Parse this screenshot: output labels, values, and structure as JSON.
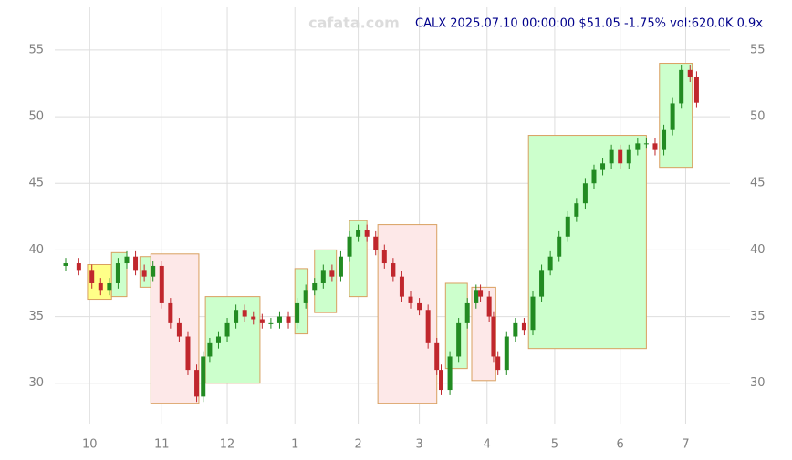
{
  "chart_data": {
    "type": "candlestick",
    "title": "CALX 2025.07.10 00:00:00 $51.05 -1.75% vol:620.0K 0.9x",
    "watermark": "cafata.com",
    "xlim": [
      0,
      293
    ],
    "ylim": [
      28,
      58
    ],
    "xticks": [
      {
        "value": 11,
        "label": "10"
      },
      {
        "value": 44,
        "label": "11"
      },
      {
        "value": 74,
        "label": "12"
      },
      {
        "value": 105,
        "label": "1"
      },
      {
        "value": 134,
        "label": "2"
      },
      {
        "value": 162,
        "label": "3"
      },
      {
        "value": 193,
        "label": "4"
      },
      {
        "value": 224,
        "label": "5"
      },
      {
        "value": 254,
        "label": "6"
      },
      {
        "value": 284,
        "label": "7"
      }
    ],
    "yticks": [
      30,
      35,
      40,
      45,
      50,
      55
    ],
    "grid": true,
    "up_color": "#228b22",
    "down_color": "#c0272d",
    "x": [
      0,
      6,
      12,
      16,
      20,
      24,
      28,
      32,
      36,
      40,
      44,
      48,
      52,
      56,
      60,
      63,
      66,
      70,
      74,
      78,
      82,
      86,
      90,
      94,
      98,
      102,
      106,
      110,
      114,
      118,
      122,
      126,
      130,
      134,
      138,
      142,
      146,
      150,
      154,
      158,
      162,
      166,
      170,
      172,
      176,
      180,
      184,
      188,
      190,
      194,
      196,
      198,
      202,
      206,
      210,
      214,
      218,
      222,
      226,
      230,
      234,
      238,
      242,
      246,
      250,
      254,
      258,
      262,
      266,
      270,
      274,
      278,
      282,
      286,
      289
    ],
    "open": [
      38.8,
      39,
      38.5,
      37.5,
      37,
      37.5,
      39,
      39.5,
      38.5,
      38,
      38.8,
      36,
      34.5,
      33.5,
      31,
      29,
      32,
      33,
      33.5,
      34.5,
      35.5,
      35,
      34.8,
      34.5,
      34.5,
      35,
      34.5,
      36,
      37,
      37.5,
      38.5,
      38,
      39.5,
      41,
      41.5,
      41,
      40,
      39,
      38,
      36.5,
      36,
      35.5,
      33,
      31,
      29.5,
      32,
      34.5,
      36,
      37,
      36.5,
      35,
      32,
      31,
      33.5,
      34.5,
      34,
      36.5,
      38.5,
      39.5,
      41,
      42.5,
      43.5,
      45,
      46,
      46.5,
      47.5,
      46.5,
      47.5,
      48,
      48,
      47.5,
      49,
      51,
      53.5,
      53
    ],
    "high": [
      39.4,
      39.4,
      38.9,
      37.9,
      37.9,
      39.4,
      39.9,
      39.9,
      38.9,
      39.2,
      39.2,
      36.4,
      34.9,
      33.9,
      31.4,
      32.4,
      33.4,
      33.9,
      34.9,
      35.9,
      35.9,
      35.4,
      35.2,
      34.9,
      35.4,
      35.4,
      36.4,
      37.4,
      37.9,
      38.9,
      38.9,
      39.9,
      41.4,
      41.9,
      41.9,
      41.4,
      40.4,
      39.4,
      38.4,
      36.9,
      36.4,
      35.9,
      33.4,
      31.4,
      32.4,
      34.9,
      36.4,
      37.4,
      37.4,
      36.9,
      35.4,
      32.4,
      33.9,
      34.9,
      34.9,
      36.9,
      38.9,
      39.9,
      41.4,
      42.9,
      43.9,
      45.4,
      46.4,
      46.9,
      47.9,
      47.9,
      47.9,
      48.4,
      48.4,
      48.4,
      49.4,
      51.4,
      53.9,
      53.9,
      53.4
    ],
    "low": [
      38.4,
      38.1,
      37.1,
      36.6,
      36.6,
      37.1,
      38.6,
      38.1,
      37.6,
      37.6,
      35.6,
      34.1,
      33.1,
      30.6,
      28.6,
      28.6,
      31.6,
      32.6,
      33.1,
      34.1,
      34.6,
      34.4,
      34.1,
      34.1,
      34.1,
      34.1,
      34.1,
      35.6,
      36.6,
      37.1,
      37.6,
      37.6,
      39.1,
      40.6,
      40.6,
      39.6,
      38.6,
      37.6,
      36.1,
      35.6,
      35.1,
      32.6,
      30.6,
      29.1,
      29.1,
      31.6,
      34.1,
      35.6,
      36.1,
      34.6,
      31.6,
      30.6,
      30.6,
      33.1,
      33.6,
      33.6,
      36.1,
      38.1,
      39.1,
      40.6,
      42.1,
      43.1,
      44.6,
      45.6,
      46.1,
      46.1,
      46.1,
      47.1,
      47.6,
      47.1,
      47.1,
      48.6,
      50.6,
      52.6,
      50.65
    ],
    "close": [
      39,
      38.5,
      37.5,
      37,
      37.5,
      39,
      39.5,
      38.5,
      38,
      38.8,
      36,
      34.5,
      33.5,
      31,
      29,
      32,
      33,
      33.5,
      34.5,
      35.5,
      35,
      34.8,
      34.5,
      34.5,
      35,
      34.5,
      36,
      37,
      37.5,
      38.5,
      38,
      39.5,
      41,
      41.5,
      41,
      40,
      39,
      38,
      36.5,
      36,
      35.5,
      33,
      31,
      29.5,
      32,
      34.5,
      36,
      37,
      36.5,
      35,
      32,
      31,
      33.5,
      34.5,
      34,
      36.5,
      38.5,
      39.5,
      41,
      42.5,
      43.5,
      45,
      46,
      46.5,
      47.5,
      46.5,
      47.5,
      48,
      48,
      47.5,
      49,
      51,
      53.5,
      53,
      51.05
    ],
    "boxes": [
      {
        "x0": 10,
        "x1": 21,
        "y0": 36.3,
        "y1": 38.9,
        "color": "#ffff88"
      },
      {
        "x0": 21,
        "x1": 28,
        "y0": 36.5,
        "y1": 39.8,
        "color": "#ccffcc"
      },
      {
        "x0": 34,
        "x1": 39,
        "y0": 37.2,
        "y1": 39.5,
        "color": "#ccffcc"
      },
      {
        "x0": 39,
        "x1": 61,
        "y0": 28.5,
        "y1": 39.7,
        "color": "#fde8e8"
      },
      {
        "x0": 64,
        "x1": 89,
        "y0": 30,
        "y1": 36.5,
        "color": "#ccffcc"
      },
      {
        "x0": 105,
        "x1": 111,
        "y0": 33.7,
        "y1": 38.6,
        "color": "#ccffcc"
      },
      {
        "x0": 114,
        "x1": 124,
        "y0": 35.3,
        "y1": 40,
        "color": "#ccffcc"
      },
      {
        "x0": 130,
        "x1": 138,
        "y0": 36.5,
        "y1": 42.2,
        "color": "#ccffcc"
      },
      {
        "x0": 143,
        "x1": 170,
        "y0": 28.5,
        "y1": 41.9,
        "color": "#fde8e8"
      },
      {
        "x0": 174,
        "x1": 184,
        "y0": 31.1,
        "y1": 37.5,
        "color": "#ccffcc"
      },
      {
        "x0": 186,
        "x1": 197,
        "y0": 30.2,
        "y1": 37.2,
        "color": "#fde8e8"
      },
      {
        "x0": 212,
        "x1": 266,
        "y0": 32.6,
        "y1": 48.6,
        "color": "#ccffcc"
      },
      {
        "x0": 272,
        "x1": 287,
        "y0": 46.2,
        "y1": 54,
        "color": "#ccffcc"
      }
    ]
  }
}
